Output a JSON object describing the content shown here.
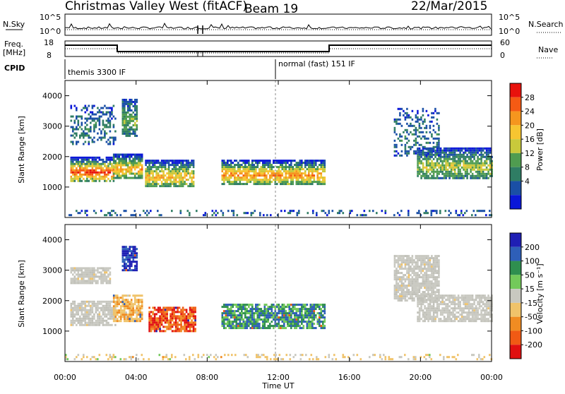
{
  "header": {
    "station": "Christmas Valley West (fitACF)",
    "beam": "Beam 19",
    "date": "22/Mar/2015"
  },
  "top_panels": {
    "nsky_label": "N.Sky",
    "nsky_ticks": [
      "10^5",
      "10^0"
    ],
    "nsearch_label": "N.Search",
    "nsearch_ticks": [
      "10^5",
      "10^0"
    ],
    "freq_label_line1": "Freq.",
    "freq_label_line2": "[MHz]",
    "freq_ticks": [
      "18",
      "8"
    ],
    "nave_label": "Nave",
    "nave_ticks": [
      "60",
      "0"
    ],
    "cpid_label": "CPID",
    "cpid_segments": [
      "themis 3300 IF",
      "normal (fast) 151 IF"
    ]
  },
  "chart_data": [
    {
      "type": "heatmap",
      "panel": "power",
      "ylabel": "Slant Range [km]",
      "yticks": [
        1000,
        2000,
        3000,
        4000
      ],
      "ylim": [
        0,
        4500
      ],
      "xlabel": "Time UT",
      "xticks": [
        "00:00",
        "04:00",
        "08:00",
        "12:00",
        "16:00",
        "20:00",
        "00:00"
      ],
      "xlim_hours": [
        0,
        24
      ],
      "colorbar": {
        "label": "Power [dB]",
        "ticks": [
          "28",
          "24",
          "20",
          "16",
          "12",
          "8",
          "4"
        ],
        "colors": [
          "#e8120c",
          "#f55a14",
          "#f5961e",
          "#f7c531",
          "#c9c93b",
          "#4f9c50",
          "#2f7d64",
          "#1a4fa6",
          "#0a17d8"
        ]
      },
      "echo_regions": [
        {
          "t0": 0.3,
          "t1": 2.7,
          "r0": 1200,
          "r1": 2000,
          "core": 0.75
        },
        {
          "t0": 2.7,
          "t1": 4.3,
          "r0": 1300,
          "r1": 2100,
          "core": 0.55
        },
        {
          "t0": 4.5,
          "t1": 7.2,
          "r0": 1000,
          "r1": 1900,
          "core": 0.5
        },
        {
          "t0": 8.8,
          "t1": 14.6,
          "r0": 1100,
          "r1": 1900,
          "core": 0.6
        },
        {
          "t0": 19.8,
          "t1": 24.0,
          "r0": 1300,
          "r1": 2300,
          "core": 0.35
        },
        {
          "t0": 0.3,
          "t1": 2.8,
          "r0": 2400,
          "r1": 3700,
          "core": 0.1
        },
        {
          "t0": 3.2,
          "t1": 4.0,
          "r0": 2700,
          "r1": 3900,
          "core": 0.25
        },
        {
          "t0": 18.5,
          "t1": 21.0,
          "r0": 2000,
          "r1": 3600,
          "core": 0.1
        },
        {
          "t0": 0.0,
          "t1": 24.0,
          "r0": 100,
          "r1": 250,
          "core": 0.05
        }
      ]
    },
    {
      "type": "heatmap",
      "panel": "velocity",
      "ylabel": "Slant Range [km]",
      "yticks": [
        1000,
        2000,
        3000,
        4000
      ],
      "ylim": [
        0,
        4500
      ],
      "xlabel": "Time UT",
      "xticks": [
        "00:00",
        "04:00",
        "08:00",
        "12:00",
        "16:00",
        "20:00",
        "00:00"
      ],
      "xlim_hours": [
        0,
        24
      ],
      "colorbar": {
        "label": "Velocity [m s⁻¹]",
        "ticks": [
          "200",
          "100",
          "50",
          "15",
          "-15",
          "-50",
          "-100",
          "-200"
        ],
        "colors": [
          "#1f1fb4",
          "#2e5fb8",
          "#2f8f4f",
          "#73c95a",
          "#c8c8c0",
          "#f0c36a",
          "#f08c22",
          "#f05a14",
          "#e01010"
        ]
      },
      "echo_regions": [
        {
          "t0": 0.3,
          "t1": 2.8,
          "r0": 1200,
          "r1": 2000,
          "vel": "grey"
        },
        {
          "t0": 2.7,
          "t1": 4.3,
          "r0": 1300,
          "r1": 2200,
          "vel": "orange"
        },
        {
          "t0": 4.7,
          "t1": 7.3,
          "r0": 1000,
          "r1": 1800,
          "vel": "red"
        },
        {
          "t0": 8.8,
          "t1": 14.6,
          "r0": 1100,
          "r1": 1900,
          "vel": "green"
        },
        {
          "t0": 19.8,
          "t1": 24.0,
          "r0": 1300,
          "r1": 2200,
          "vel": "grey"
        },
        {
          "t0": 0.3,
          "t1": 2.5,
          "r0": 2600,
          "r1": 3100,
          "vel": "grey"
        },
        {
          "t0": 3.2,
          "t1": 4.0,
          "r0": 3000,
          "r1": 3800,
          "vel": "blue"
        },
        {
          "t0": 18.5,
          "t1": 21.0,
          "r0": 2000,
          "r1": 3500,
          "vel": "grey"
        },
        {
          "t0": 0.0,
          "t1": 24.0,
          "r0": 100,
          "r1": 250,
          "vel": "yellow"
        }
      ]
    }
  ]
}
